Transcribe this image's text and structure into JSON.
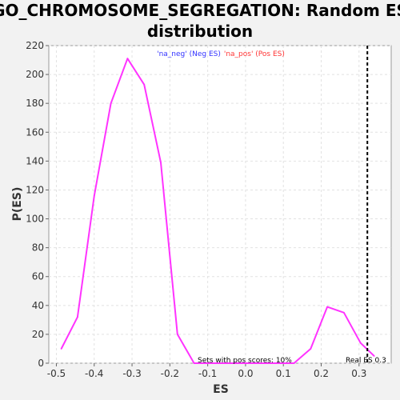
{
  "chart_data": {
    "type": "line",
    "title_line1": "GO_CHROMOSOME_SEGREGATION: Random ES",
    "title_line2": "distribution",
    "xlabel": "ES",
    "ylabel": "P(ES)",
    "xlim": [
      -0.52,
      0.385
    ],
    "ylim": [
      0,
      220
    ],
    "x_ticks": [
      -0.5,
      -0.4,
      -0.3,
      -0.2,
      -0.1,
      0.0,
      0.1,
      0.2,
      0.3
    ],
    "x_tick_labels": [
      "-0.5",
      "-0.4",
      "-0.3",
      "-0.2",
      "-0.1",
      "0.0",
      "0.1",
      "0.2",
      "0.3"
    ],
    "y_ticks": [
      0,
      20,
      40,
      60,
      80,
      100,
      120,
      140,
      160,
      180,
      200,
      220
    ],
    "y_tick_labels": [
      "0",
      "20",
      "40",
      "60",
      "80",
      "100",
      "120",
      "140",
      "160",
      "180",
      "200",
      "220"
    ],
    "grid": true,
    "legend": {
      "placement": "top-center",
      "entries": [
        {
          "label": "'na_neg' (Neg ES)",
          "color": "#3333ff"
        },
        {
          "label": "'na_pos' (Pos ES)",
          "color": "#ff3333"
        }
      ]
    },
    "series": [
      {
        "color": "#ff33ff",
        "x": [
          -0.487,
          -0.444,
          -0.4,
          -0.356,
          -0.312,
          -0.268,
          -0.224,
          -0.18,
          -0.136,
          -0.092,
          -0.048,
          -0.004,
          0.04,
          0.084,
          0.128,
          0.172,
          0.216,
          0.26,
          0.304,
          0.34
        ],
        "y": [
          10,
          32,
          116,
          180,
          211,
          193,
          139,
          20,
          0,
          0,
          0,
          0,
          0,
          0,
          0,
          10,
          39,
          35,
          14,
          5
        ]
      }
    ],
    "real_es": {
      "value": 0.322,
      "color": "#000000",
      "label": "Real ES 0.3"
    },
    "annotation": "Sets with pos scores: 10%"
  }
}
